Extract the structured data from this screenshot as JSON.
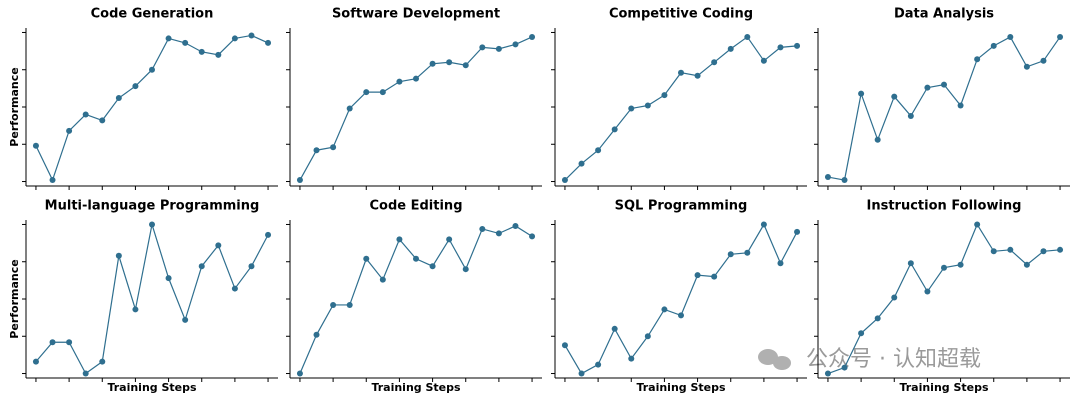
{
  "chart_data": [
    {
      "type": "line",
      "title": "Code Generation",
      "ylabel": "Performance",
      "color": "#2f6f8f",
      "x": [
        0,
        1,
        2,
        3,
        4,
        5,
        6,
        7,
        8,
        9,
        10,
        11,
        12,
        13,
        14
      ],
      "values": [
        0.24,
        0.01,
        0.34,
        0.45,
        0.41,
        0.56,
        0.64,
        0.75,
        0.96,
        0.93,
        0.87,
        0.85,
        0.96,
        0.98,
        0.93
      ],
      "xlim": [
        -0.6,
        14.6
      ],
      "xticks": [
        0,
        2,
        4,
        6,
        8,
        10,
        12,
        14
      ],
      "ylim": [
        -0.03,
        1.03
      ],
      "yticks": [
        0,
        0.25,
        0.5,
        0.75,
        1
      ]
    },
    {
      "type": "line",
      "title": "Software Development",
      "color": "#2f6f8f",
      "x": [
        0,
        1,
        2,
        3,
        4,
        5,
        6,
        7,
        8,
        9,
        10,
        11,
        12,
        13,
        14
      ],
      "values": [
        0.01,
        0.21,
        0.23,
        0.49,
        0.6,
        0.6,
        0.67,
        0.69,
        0.79,
        0.8,
        0.78,
        0.9,
        0.89,
        0.92,
        0.97
      ],
      "xlim": [
        -0.6,
        14.6
      ],
      "xticks": [
        0,
        2,
        4,
        6,
        8,
        10,
        12,
        14
      ],
      "ylim": [
        -0.03,
        1.03
      ],
      "yticks": [
        0,
        0.25,
        0.5,
        0.75,
        1
      ]
    },
    {
      "type": "line",
      "title": "Competitive Coding",
      "color": "#2f6f8f",
      "x": [
        0,
        1,
        2,
        3,
        4,
        5,
        6,
        7,
        8,
        9,
        10,
        11,
        12,
        13,
        14
      ],
      "values": [
        0.01,
        0.12,
        0.21,
        0.35,
        0.49,
        0.51,
        0.58,
        0.73,
        0.71,
        0.8,
        0.89,
        0.97,
        0.81,
        0.9,
        0.91
      ],
      "xlim": [
        -0.6,
        14.6
      ],
      "xticks": [
        0,
        2,
        4,
        6,
        8,
        10,
        12,
        14
      ],
      "ylim": [
        -0.03,
        1.03
      ],
      "yticks": [
        0,
        0.25,
        0.5,
        0.75,
        1
      ]
    },
    {
      "type": "line",
      "title": "Data Analysis",
      "color": "#2f6f8f",
      "x": [
        0,
        1,
        2,
        3,
        4,
        5,
        6,
        7,
        8,
        9,
        10,
        11,
        12,
        13,
        14
      ],
      "values": [
        0.03,
        0.01,
        0.59,
        0.28,
        0.57,
        0.44,
        0.63,
        0.65,
        0.51,
        0.82,
        0.91,
        0.97,
        0.77,
        0.81,
        0.97
      ],
      "xlim": [
        -0.6,
        14.6
      ],
      "xticks": [
        0,
        2,
        4,
        6,
        8,
        10,
        12,
        14
      ],
      "ylim": [
        -0.03,
        1.03
      ],
      "yticks": [
        0,
        0.25,
        0.5,
        0.75,
        1
      ]
    },
    {
      "type": "line",
      "title": "Multi-language Programming",
      "ylabel": "Performance",
      "xlabel": "Training Steps",
      "color": "#2f6f8f",
      "x": [
        0,
        1,
        2,
        3,
        4,
        5,
        6,
        7,
        8,
        9,
        10,
        11,
        12,
        13,
        14
      ],
      "values": [
        0.08,
        0.21,
        0.21,
        0,
        0.08,
        0.79,
        0.43,
        1,
        0.64,
        0.36,
        0.72,
        0.86,
        0.57,
        0.72,
        0.93
      ],
      "xlim": [
        -0.6,
        14.6
      ],
      "xticks": [
        0,
        2,
        4,
        6,
        8,
        10,
        12,
        14
      ],
      "ylim": [
        -0.03,
        1.03
      ],
      "yticks": [
        0,
        0.25,
        0.5,
        0.75,
        1
      ]
    },
    {
      "type": "line",
      "title": "Code Editing",
      "xlabel": "Training Steps",
      "color": "#2f6f8f",
      "x": [
        0,
        1,
        2,
        3,
        4,
        5,
        6,
        7,
        8,
        9,
        10,
        11,
        12,
        13,
        14
      ],
      "values": [
        0,
        0.26,
        0.46,
        0.46,
        0.77,
        0.63,
        0.9,
        0.77,
        0.72,
        0.9,
        0.7,
        0.97,
        0.94,
        0.99,
        0.92
      ],
      "xlim": [
        -0.6,
        14.6
      ],
      "xticks": [
        0,
        2,
        4,
        6,
        8,
        10,
        12,
        14
      ],
      "ylim": [
        -0.03,
        1.03
      ],
      "yticks": [
        0,
        0.25,
        0.5,
        0.75,
        1
      ]
    },
    {
      "type": "line",
      "title": "SQL Programming",
      "xlabel": "Training Steps",
      "color": "#2f6f8f",
      "x": [
        0,
        1,
        2,
        3,
        4,
        5,
        6,
        7,
        8,
        9,
        10,
        11,
        12,
        13,
        14
      ],
      "values": [
        0.19,
        0,
        0.06,
        0.3,
        0.1,
        0.25,
        0.43,
        0.39,
        0.66,
        0.65,
        0.8,
        0.81,
        1,
        0.74,
        0.95
      ],
      "xlim": [
        -0.6,
        14.6
      ],
      "xticks": [
        0,
        2,
        4,
        6,
        8,
        10,
        12,
        14
      ],
      "ylim": [
        -0.03,
        1.03
      ],
      "yticks": [
        0,
        0.25,
        0.5,
        0.75,
        1
      ]
    },
    {
      "type": "line",
      "title": "Instruction Following",
      "xlabel": "Training Steps",
      "color": "#2f6f8f",
      "x": [
        0,
        1,
        2,
        3,
        4,
        5,
        6,
        7,
        8,
        9,
        10,
        11,
        12,
        13,
        14
      ],
      "values": [
        0,
        0.04,
        0.27,
        0.37,
        0.51,
        0.74,
        0.55,
        0.71,
        0.73,
        1,
        0.82,
        0.83,
        0.73,
        0.82,
        0.83
      ],
      "xlim": [
        -0.6,
        14.6
      ],
      "xticks": [
        0,
        2,
        4,
        6,
        8,
        10,
        12,
        14
      ],
      "ylim": [
        -0.03,
        1.03
      ],
      "yticks": [
        0,
        0.25,
        0.5,
        0.75,
        1
      ]
    }
  ],
  "watermark": "公众号 · 认知超载"
}
